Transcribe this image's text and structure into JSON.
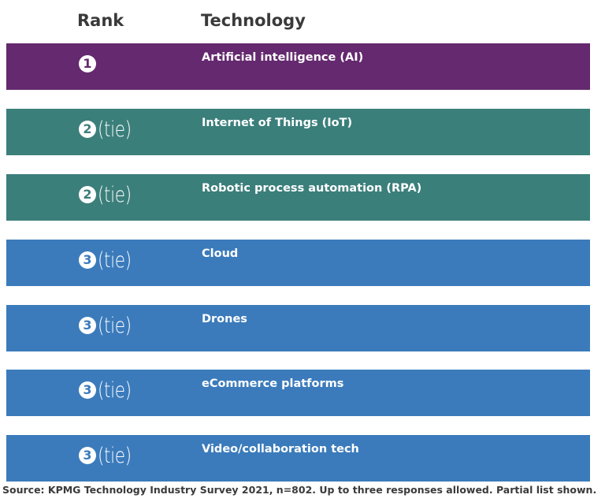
{
  "headers": {
    "rank": "Rank",
    "technology": "Technology"
  },
  "colors": {
    "rank_1": "#64296e",
    "rank_2": "#3b7f7b",
    "rank_3": "#3b7bbb"
  },
  "chart_data": {
    "type": "table",
    "columns": [
      "Rank",
      "Technology"
    ],
    "rows": [
      {
        "rank": "1",
        "tie": "",
        "technology": "Artificial intelligence (AI)",
        "color": "#64296e"
      },
      {
        "rank": "2",
        "tie": "(tie)",
        "technology": "Internet of Things (IoT)",
        "color": "#3b7f7b"
      },
      {
        "rank": "2",
        "tie": "(tie)",
        "technology": "Robotic process automation (RPA)",
        "color": "#3b7f7b"
      },
      {
        "rank": "3",
        "tie": "(tie)",
        "technology": "Cloud",
        "color": "#3b7bbb"
      },
      {
        "rank": "3",
        "tie": "(tie)",
        "technology": "Drones",
        "color": "#3b7bbb"
      },
      {
        "rank": "3",
        "tie": "(tie)",
        "technology": "eCommerce platforms",
        "color": "#3b7bbb"
      },
      {
        "rank": "3",
        "tie": "(tie)",
        "technology": "Video/collaboration tech",
        "color": "#3b7bbb"
      }
    ]
  },
  "source": "Source: KPMG Technology Industry Survey 2021, n=802. Up to three responses allowed. Partial list shown."
}
